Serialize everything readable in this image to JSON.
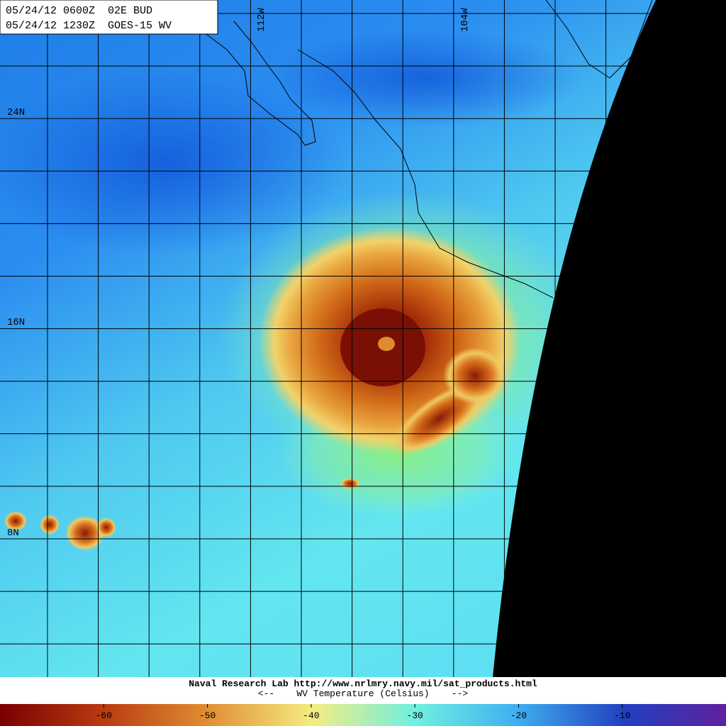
{
  "header": {
    "lines": [
      "05/24/12 0600Z  02E BUD",
      "05/24/12 1230Z  GOES-15 WV"
    ]
  },
  "grid_labels": {
    "latitudes": [
      "24N",
      "16N",
      "8N"
    ],
    "longitudes": [
      "112W",
      "104W"
    ]
  },
  "footer": {
    "source": "Naval Research Lab http://www.nrlmry.navy.mil/sat_products.html",
    "legend_title": "<--    WV Temperature (Celsius)    -->"
  },
  "colorbar": {
    "range": [
      -70,
      0
    ],
    "ticks": [
      -60,
      -50,
      -40,
      -30,
      -20,
      -10
    ]
  }
}
